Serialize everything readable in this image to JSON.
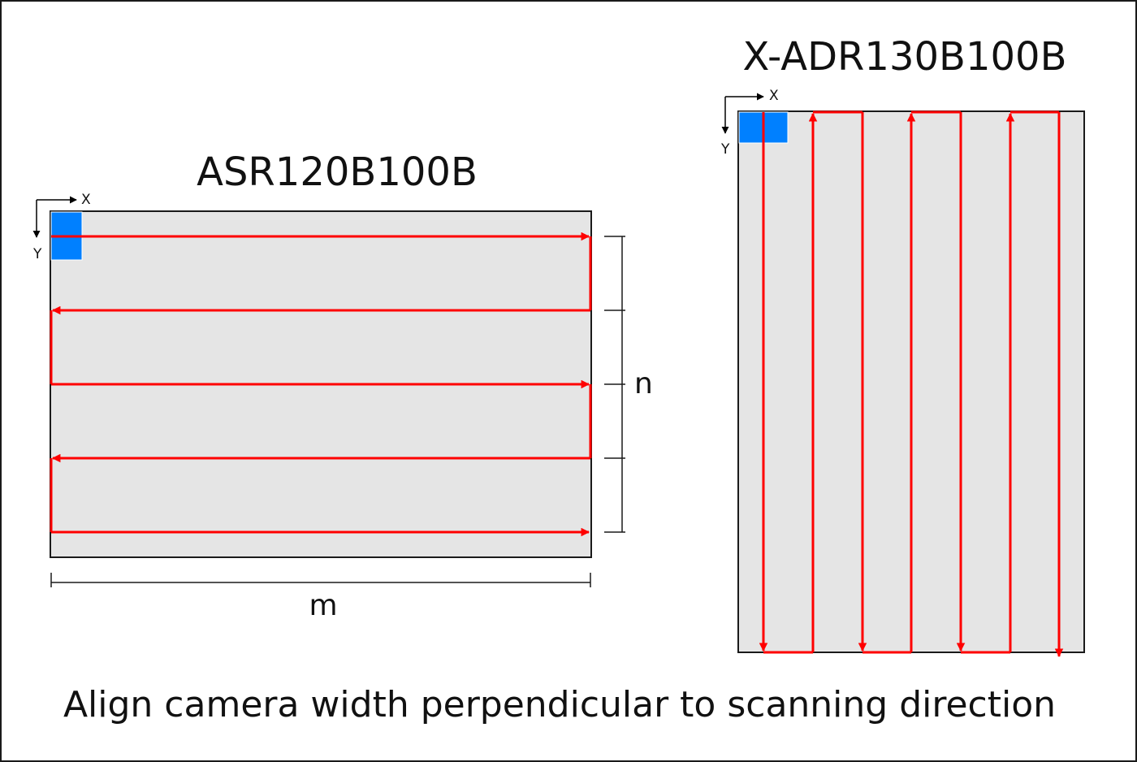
{
  "left_panel": {
    "title": "ASR120B100B",
    "axis_x": "X",
    "axis_y": "Y",
    "dimension_vertical": "n",
    "dimension_horizontal": "m",
    "scan_pattern": "horizontal-serpentine",
    "scan_passes": 5
  },
  "right_panel": {
    "title": "X-ADR130B100B",
    "axis_x": "X",
    "axis_y": "Y",
    "scan_pattern": "vertical-serpentine",
    "scan_passes": 7
  },
  "caption": "Align camera width perpendicular to scanning direction",
  "colors": {
    "scan_path": "#ff0000",
    "camera_fov": "#0080ff",
    "stage_fill": "#e5e5e5",
    "outline": "#1a1a1a"
  }
}
